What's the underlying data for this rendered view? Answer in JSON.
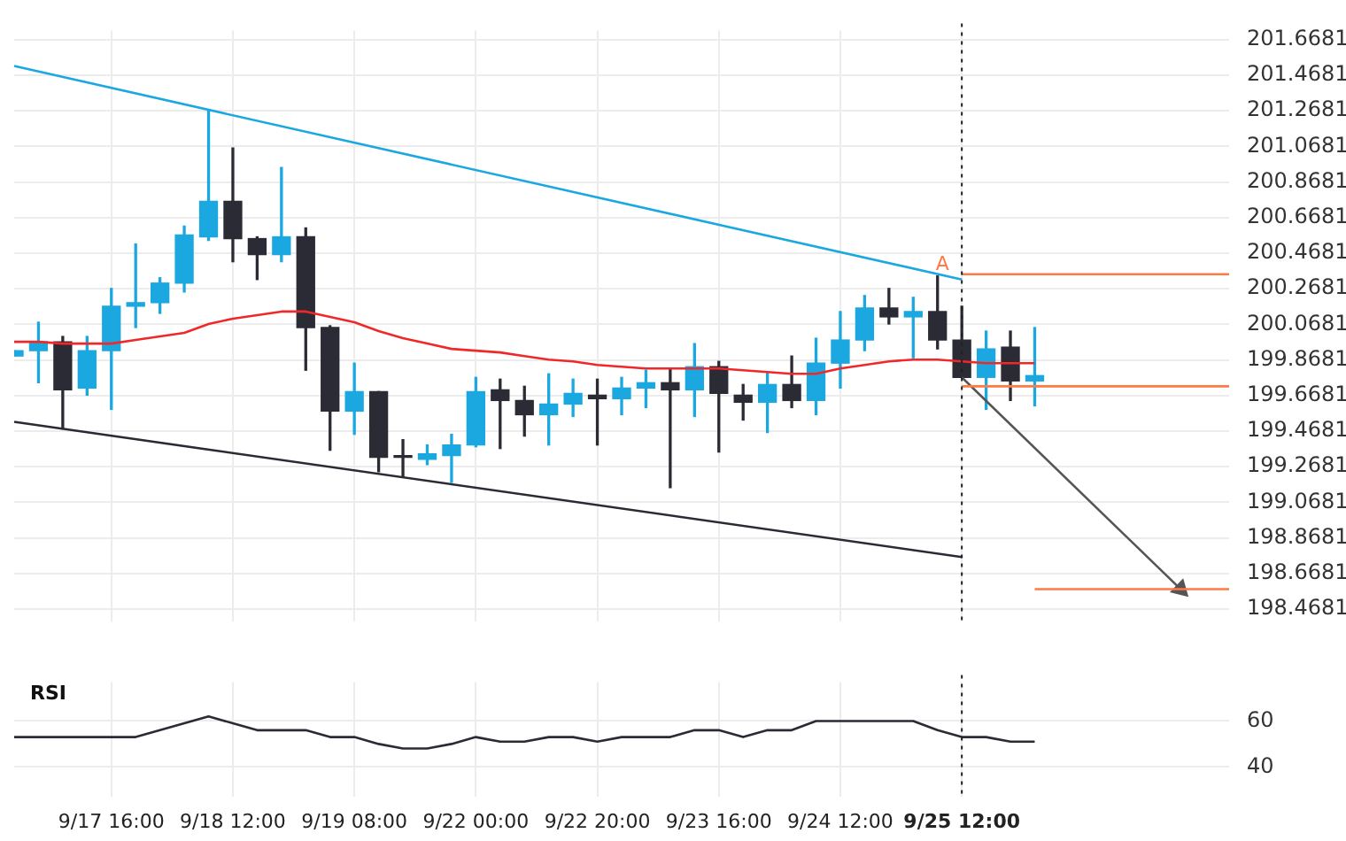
{
  "chart_data": [
    {
      "type": "candlestick",
      "tick_labels": "y",
      "grid": true,
      "legend": false,
      "marker": "none",
      "categories": [
        null,
        null,
        null,
        null,
        "9/17 16:00",
        null,
        null,
        null,
        null,
        "9/18 12:00",
        null,
        null,
        null,
        null,
        "9/19 08:00",
        null,
        null,
        null,
        null,
        "9/22 00:00",
        null,
        null,
        null,
        null,
        "9/22 20:00",
        null,
        null,
        null,
        null,
        "9/23 16:00",
        null,
        null,
        null,
        null,
        "9/24 12:00",
        null,
        null,
        null,
        null,
        "9/25 12:00",
        null,
        null,
        null,
        null,
        null,
        null,
        null,
        null,
        null,
        null,
        null
      ],
      "ohlc": [
        [
          199.89,
          199.92,
          199.89,
          199.92
        ],
        [
          199.92,
          200.08,
          199.74,
          199.97
        ],
        [
          199.97,
          200.0,
          199.48,
          199.7
        ],
        [
          199.71,
          200.0,
          199.67,
          199.92
        ],
        [
          199.92,
          200.27,
          199.59,
          200.17
        ],
        [
          200.17,
          200.52,
          200.05,
          200.19
        ],
        [
          200.19,
          200.33,
          200.13,
          200.3
        ],
        [
          200.3,
          200.62,
          200.25,
          200.57
        ],
        [
          200.56,
          201.27,
          200.54,
          200.76
        ],
        [
          200.76,
          201.06,
          200.42,
          200.55
        ],
        [
          200.55,
          200.56,
          200.32,
          200.46
        ],
        [
          200.46,
          200.95,
          200.42,
          200.56
        ],
        [
          200.56,
          200.61,
          199.81,
          200.05
        ],
        [
          200.05,
          200.06,
          199.36,
          199.58
        ],
        [
          199.58,
          199.85,
          199.45,
          199.69
        ],
        [
          199.69,
          199.69,
          199.24,
          199.32
        ],
        [
          199.32,
          199.42,
          199.21,
          199.32
        ],
        [
          199.31,
          199.39,
          199.28,
          199.34
        ],
        [
          199.33,
          199.45,
          199.18,
          199.39
        ],
        [
          199.39,
          199.77,
          199.38,
          199.69
        ],
        [
          199.7,
          199.76,
          199.37,
          199.64
        ],
        [
          199.64,
          199.72,
          199.44,
          199.56
        ],
        [
          199.56,
          199.79,
          199.39,
          199.62
        ],
        [
          199.62,
          199.76,
          199.55,
          199.68
        ],
        [
          199.67,
          199.76,
          199.39,
          199.65
        ],
        [
          199.65,
          199.77,
          199.56,
          199.71
        ],
        [
          199.71,
          199.81,
          199.6,
          199.74
        ],
        [
          199.74,
          199.82,
          199.15,
          199.7
        ],
        [
          199.7,
          199.96,
          199.55,
          199.83
        ],
        [
          199.83,
          199.86,
          199.35,
          199.68
        ],
        [
          199.67,
          199.73,
          199.53,
          199.63
        ],
        [
          199.63,
          199.8,
          199.46,
          199.73
        ],
        [
          199.73,
          199.89,
          199.6,
          199.64
        ],
        [
          199.64,
          199.99,
          199.56,
          199.85
        ],
        [
          199.85,
          200.14,
          199.71,
          199.98
        ],
        [
          199.98,
          200.23,
          199.92,
          200.16
        ],
        [
          200.16,
          200.27,
          200.07,
          200.11
        ],
        [
          200.11,
          200.22,
          199.88,
          200.14
        ],
        [
          200.14,
          200.34,
          199.93,
          199.98
        ],
        [
          199.98,
          200.17,
          199.77,
          199.77
        ],
        [
          199.77,
          200.03,
          199.59,
          199.93
        ],
        [
          199.94,
          200.03,
          199.64,
          199.75
        ],
        [
          199.75,
          200.05,
          199.61,
          199.78
        ],
        null,
        null,
        null,
        null,
        null,
        null,
        null,
        null
      ],
      "colors": [
        "#1ba8e0",
        "#1ba8e0",
        "#2b2b35",
        "#1ba8e0",
        "#1ba8e0",
        "#1ba8e0",
        "#1ba8e0",
        "#1ba8e0",
        "#1ba8e0",
        "#2b2b35",
        "#2b2b35",
        "#1ba8e0",
        "#2b2b35",
        "#2b2b35",
        "#1ba8e0",
        "#2b2b35",
        "#2b2b35",
        "#1ba8e0",
        "#1ba8e0",
        "#1ba8e0",
        "#2b2b35",
        "#2b2b35",
        "#1ba8e0",
        "#1ba8e0",
        "#2b2b35",
        "#1ba8e0",
        "#1ba8e0",
        "#2b2b35",
        "#1ba8e0",
        "#2b2b35",
        "#2b2b35",
        "#1ba8e0",
        "#2b2b35",
        "#1ba8e0",
        "#1ba8e0",
        "#1ba8e0",
        "#2b2b35",
        "#1ba8e0",
        "#2b2b35",
        "#2b2b35",
        "#1ba8e0",
        "#2b2b35",
        "#1ba8e0",
        null,
        null,
        null,
        null,
        null,
        null,
        null,
        null
      ],
      "series": [
        {
          "type": "line",
          "color": "#f0282a",
          "values": [
            199.97,
            199.97,
            199.96,
            199.96,
            199.96,
            199.98,
            200.0,
            200.02,
            200.07,
            200.1,
            200.12,
            200.14,
            200.14,
            200.11,
            200.08,
            200.03,
            199.99,
            199.96,
            199.93,
            199.92,
            199.91,
            199.89,
            199.87,
            199.86,
            199.84,
            199.83,
            199.82,
            199.82,
            199.82,
            199.82,
            199.81,
            199.8,
            199.79,
            199.79,
            199.82,
            199.84,
            199.86,
            199.87,
            199.87,
            199.86,
            199.85,
            199.85,
            199.85,
            null,
            null,
            null,
            null,
            null,
            null,
            null,
            null
          ]
        },
        {
          "type": "line",
          "color": "#1ba8e0",
          "values": [
            201.52,
            null,
            null,
            null,
            null,
            null,
            null,
            null,
            null,
            null,
            null,
            null,
            null,
            null,
            null,
            null,
            null,
            null,
            null,
            null,
            null,
            null,
            null,
            null,
            null,
            null,
            null,
            null,
            null,
            null,
            null,
            null,
            null,
            null,
            null,
            null,
            null,
            null,
            null,
            200.32,
            null,
            null,
            null,
            null,
            null,
            null,
            null,
            null,
            null,
            null,
            null
          ]
        },
        {
          "type": "line",
          "color": "#2b2b35",
          "values": [
            199.52,
            null,
            null,
            null,
            null,
            null,
            null,
            null,
            null,
            null,
            null,
            null,
            null,
            null,
            null,
            null,
            null,
            null,
            null,
            null,
            null,
            null,
            null,
            null,
            null,
            null,
            null,
            null,
            null,
            null,
            null,
            null,
            null,
            null,
            null,
            null,
            null,
            null,
            null,
            198.76,
            null,
            null,
            null,
            null,
            null,
            null,
            null,
            null,
            null,
            null,
            null
          ]
        },
        {
          "type": "line",
          "color": "#ff7a45",
          "values": [
            null,
            null,
            null,
            null,
            null,
            null,
            null,
            null,
            null,
            null,
            null,
            null,
            null,
            null,
            null,
            null,
            null,
            null,
            null,
            null,
            null,
            null,
            null,
            null,
            null,
            null,
            null,
            null,
            null,
            null,
            null,
            null,
            null,
            null,
            null,
            null,
            null,
            null,
            null,
            200.35,
            null,
            null,
            null,
            null,
            null,
            null,
            null,
            null,
            null,
            null,
            200.35
          ]
        },
        {
          "type": "line",
          "color": "#ff7a45",
          "values": [
            null,
            null,
            null,
            null,
            null,
            null,
            null,
            null,
            null,
            null,
            null,
            null,
            null,
            null,
            null,
            null,
            null,
            null,
            null,
            null,
            null,
            null,
            null,
            null,
            null,
            null,
            null,
            null,
            null,
            null,
            null,
            null,
            null,
            null,
            null,
            null,
            null,
            null,
            null,
            199.72,
            null,
            null,
            null,
            null,
            null,
            null,
            null,
            null,
            null,
            null,
            199.72
          ]
        },
        {
          "type": "line",
          "color": "#ff7a45",
          "values": [
            null,
            null,
            null,
            null,
            null,
            null,
            null,
            null,
            null,
            null,
            null,
            null,
            null,
            null,
            null,
            null,
            null,
            null,
            null,
            null,
            null,
            null,
            null,
            null,
            null,
            null,
            null,
            null,
            null,
            null,
            null,
            null,
            null,
            null,
            null,
            null,
            null,
            null,
            null,
            null,
            null,
            null,
            198.58,
            null,
            null,
            null,
            null,
            null,
            null,
            null,
            198.58
          ]
        },
        {
          "type": "line",
          "color": "#555555",
          "marker": "triangle",
          "values": [
            null,
            null,
            null,
            null,
            null,
            null,
            null,
            null,
            null,
            null,
            null,
            null,
            null,
            null,
            null,
            null,
            null,
            null,
            null,
            null,
            null,
            null,
            null,
            null,
            null,
            null,
            null,
            null,
            null,
            null,
            null,
            null,
            null,
            null,
            null,
            null,
            null,
            null,
            null,
            199.77,
            null,
            null,
            null,
            null,
            null,
            null,
            null,
            null,
            198.58,
            null,
            null
          ]
        }
      ],
      "ylim": [
        198.4,
        201.72
      ],
      "yticks": [
        198.4681,
        198.6681,
        198.8681,
        199.0681,
        199.2681,
        199.4681,
        199.6681,
        199.8681,
        200.0681,
        200.2681,
        200.4681,
        200.6681,
        200.8681,
        201.0681,
        201.2681,
        201.4681,
        201.6681
      ],
      "ref_lines": [
        {
          "axis": "x",
          "value": "9/25 12:00",
          "line_style": "dotted",
          "color": "#222222"
        }
      ],
      "annotations": [
        {
          "text": "A",
          "y": 200.4
        }
      ]
    },
    {
      "type": "line",
      "title": "RSI",
      "grid": true,
      "legend": false,
      "marker": "none",
      "categories": [
        null,
        null,
        null,
        null,
        "9/17 16:00",
        null,
        null,
        null,
        null,
        "9/18 12:00",
        null,
        null,
        null,
        null,
        "9/19 08:00",
        null,
        null,
        null,
        null,
        "9/22 00:00",
        null,
        null,
        null,
        null,
        "9/22 20:00",
        null,
        null,
        null,
        null,
        "9/23 16:00",
        null,
        null,
        null,
        null,
        "9/24 12:00",
        null,
        null,
        null,
        null,
        "9/25 12:00",
        null,
        null,
        null,
        null,
        null,
        null,
        null,
        null,
        null,
        null,
        null
      ],
      "series": [
        {
          "type": "line",
          "color": "#2b2b35",
          "values": [
            53,
            53,
            53,
            53,
            53,
            53,
            56,
            59,
            62,
            59,
            56,
            56,
            56,
            53,
            53,
            50,
            48,
            48,
            50,
            53,
            51,
            51,
            53,
            53,
            51,
            53,
            53,
            53,
            56,
            56,
            53,
            56,
            56,
            60,
            60,
            60,
            60,
            60,
            56,
            53,
            53,
            51,
            51,
            null,
            null,
            null,
            null,
            null,
            null,
            null,
            null
          ]
        }
      ],
      "ylim": [
        27,
        77
      ],
      "yticks": [
        40,
        60
      ],
      "ref_lines": [
        {
          "axis": "x",
          "value": "9/25 12:00",
          "line_style": "dotted",
          "color": "#222222"
        }
      ]
    }
  ]
}
